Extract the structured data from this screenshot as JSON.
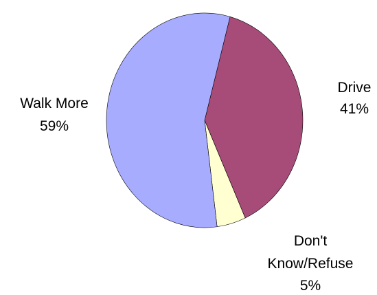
{
  "chart_data": {
    "type": "pie",
    "slices": [
      {
        "name": "Drive",
        "value": 41,
        "value_label": "41%",
        "color": "#A74B78"
      },
      {
        "name": "Don't Know/Refuse",
        "name_lines": [
          "Don't",
          "Know/Refuse"
        ],
        "value": 5,
        "value_label": "5%",
        "color": "#FFFFD2"
      },
      {
        "name": "Walk More",
        "value": 59,
        "value_label": "59%",
        "color": "#A8ACFF"
      }
    ]
  }
}
